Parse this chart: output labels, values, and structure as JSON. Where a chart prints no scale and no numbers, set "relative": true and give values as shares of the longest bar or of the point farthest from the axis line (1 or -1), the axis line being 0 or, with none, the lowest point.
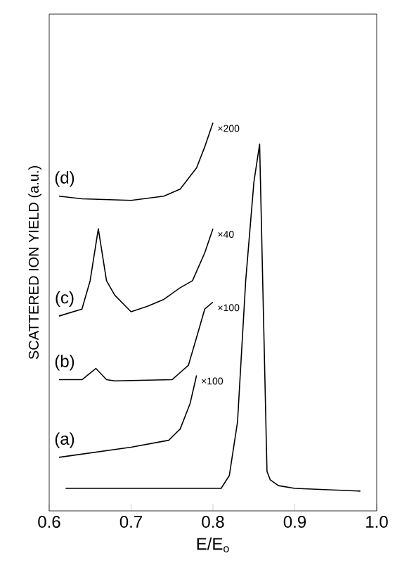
{
  "chart_data": {
    "type": "line",
    "relative": true,
    "xlabel": "E/E$_{o}$",
    "ylabel": "SCATTERED ION YIELD (a.u.)",
    "xlim": [
      0.6,
      1.0
    ],
    "xticks": [
      0.6,
      0.7,
      0.8,
      0.9,
      {
        "value": 1.0,
        "label": "1.0"
      }
    ],
    "series": [
      {
        "color": "#000000",
        "x": [
          0.62,
          0.7,
          0.81,
          0.82,
          0.83,
          0.84,
          0.85,
          0.857,
          0.866,
          0.87,
          0.88,
          0.9,
          0.98
        ],
        "values": [
          0.058,
          0.058,
          0.058,
          0.091,
          0.229,
          0.593,
          0.847,
          0.945,
          0.102,
          0.08,
          0.065,
          0.058,
          0.051
        ]
      },
      {
        "name": "(a)",
        "color": "#000000",
        "x": [
          0.612,
          0.7,
          0.746,
          0.76,
          0.772,
          0.78
        ],
        "values": [
          0.138,
          0.164,
          0.182,
          0.211,
          0.276,
          0.349
        ]
      },
      {
        "name": "(b)",
        "color": "#000000",
        "x": [
          0.612,
          0.64,
          0.657,
          0.67,
          0.68,
          0.75,
          0.77,
          0.78,
          0.79,
          0.8
        ],
        "values": [
          0.338,
          0.338,
          0.367,
          0.338,
          0.335,
          0.338,
          0.375,
          0.447,
          0.52,
          0.538
        ]
      },
      {
        "name": "(c)",
        "color": "#000000",
        "x": [
          0.612,
          0.64,
          0.65,
          0.66,
          0.67,
          0.68,
          0.7,
          0.72,
          0.74,
          0.76,
          0.775,
          0.79,
          0.8
        ],
        "values": [
          0.502,
          0.52,
          0.593,
          0.727,
          0.593,
          0.556,
          0.513,
          0.527,
          0.545,
          0.575,
          0.593,
          0.665,
          0.727
        ]
      },
      {
        "name": "(d)",
        "color": "#000000",
        "x": [
          0.612,
          0.64,
          0.7,
          0.74,
          0.76,
          0.78,
          0.79,
          0.8
        ],
        "values": [
          0.811,
          0.804,
          0.8,
          0.811,
          0.829,
          0.884,
          0.938,
          1.0
        ]
      }
    ],
    "annotations": [
      "×100",
      "×100",
      "×40",
      "×200"
    ]
  }
}
